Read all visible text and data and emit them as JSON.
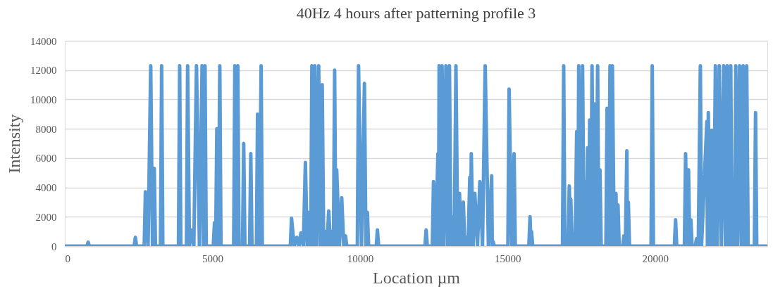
{
  "chart_data": {
    "type": "line",
    "title": "40Hz 4 hours after patterning profile 3",
    "xlabel": "Location µm",
    "ylabel": "Intensity",
    "xlim": [
      0,
      23800
    ],
    "xticks": [
      0,
      5000,
      10000,
      15000,
      20000
    ],
    "ylim": [
      0,
      14000
    ],
    "yticks": [
      0,
      2000,
      4000,
      6000,
      8000,
      10000,
      12000,
      14000
    ],
    "grid": "y",
    "legend": false,
    "marker": "none",
    "line_style": "solid",
    "series": [
      {
        "color": "#5b9bd5",
        "x": [
          0,
          750,
          790,
          830,
          2350,
          2390,
          2430,
          2690,
          2730,
          2820,
          2910,
          2970,
          3030,
          3070,
          3240,
          3280,
          3320,
          3850,
          3890,
          3930,
          4120,
          4160,
          4220,
          4290,
          4370,
          4460,
          4560,
          4650,
          4700,
          4750,
          4790,
          5030,
          5070,
          5110,
          5150,
          5200,
          5250,
          5290,
          5720,
          5760,
          5810,
          5860,
          5900,
          6020,
          6060,
          6100,
          6260,
          6300,
          6340,
          6490,
          6530,
          6590,
          6650,
          6690,
          7640,
          7680,
          7770,
          7860,
          7930,
          8000,
          8080,
          8150,
          8210,
          8280,
          8330,
          8370,
          8420,
          8470,
          8530,
          8600,
          8660,
          8720,
          8770,
          8820,
          8880,
          8940,
          9000,
          9060,
          9100,
          9140,
          9180,
          9210,
          9300,
          9380,
          9450,
          9510,
          9550,
          9910,
          9950,
          10050,
          10150,
          10200,
          10250,
          10290,
          10550,
          10590,
          10630,
          12200,
          12240,
          12280,
          12450,
          12490,
          12560,
          12640,
          12660,
          12680,
          12730,
          12780,
          12840,
          12910,
          12970,
          13030,
          13080,
          13130,
          13190,
          13250,
          13310,
          13370,
          13430,
          13500,
          13550,
          13600,
          13660,
          13720,
          13740,
          13770,
          13830,
          13890,
          13980,
          14060,
          14150,
          14240,
          14350,
          14460,
          14480,
          14510,
          14550,
          15010,
          15050,
          15140,
          15220,
          15260,
          15720,
          15760,
          15790,
          15810,
          15850,
          16860,
          16900,
          16940,
          17050,
          17090,
          17120,
          17140,
          17190,
          17240,
          17290,
          17340,
          17380,
          17410,
          17480,
          17540,
          17590,
          17640,
          17670,
          17710,
          17750,
          17780,
          17820,
          17860,
          17910,
          17960,
          18000,
          18050,
          18090,
          18130,
          18170,
          18330,
          18370,
          18420,
          18470,
          18510,
          18550,
          18610,
          18670,
          18710,
          18740,
          18780,
          18900,
          18940,
          18990,
          19040,
          19060,
          19090,
          19130,
          19860,
          19900,
          19940,
          20650,
          20690,
          20730,
          20990,
          21030,
          21080,
          21130,
          21170,
          21210,
          21250,
          21360,
          21400,
          21460,
          21530,
          21570,
          21750,
          21770,
          21800,
          21860,
          21920,
          21980,
          22040,
          22100,
          22170,
          22240,
          22320,
          22380,
          22440,
          22500,
          22560,
          22600,
          22640,
          22690,
          22730,
          22790,
          22860,
          22920,
          22980,
          23040,
          23100,
          23150,
          23360,
          23400,
          23440,
          23800
        ],
        "values": [
          0,
          0,
          270,
          0,
          0,
          600,
          0,
          0,
          3700,
          0,
          12300,
          0,
          5300,
          0,
          0,
          12300,
          0,
          0,
          12300,
          0,
          0,
          12300,
          0,
          1100,
          0,
          12300,
          0,
          12300,
          0,
          12300,
          0,
          0,
          1600,
          0,
          8000,
          0,
          12300,
          0,
          0,
          12300,
          0,
          12300,
          0,
          0,
          7000,
          0,
          0,
          6300,
          0,
          0,
          9000,
          0,
          12300,
          0,
          0,
          1900,
          0,
          600,
          0,
          900,
          0,
          5700,
          0,
          2300,
          0,
          12300,
          0,
          12300,
          0,
          12300,
          0,
          11000,
          0,
          1000,
          0,
          2400,
          0,
          1000,
          0,
          12000,
          0,
          5200,
          0,
          3300,
          0,
          700,
          0,
          0,
          12300,
          0,
          11100,
          0,
          2300,
          0,
          0,
          1100,
          0,
          0,
          1100,
          0,
          0,
          4400,
          0,
          6300,
          0,
          12300,
          0,
          12300,
          0,
          12300,
          0,
          12300,
          0,
          2000,
          0,
          12300,
          0,
          3600,
          0,
          3000,
          0,
          600,
          0,
          4700,
          0,
          6300,
          0,
          3600,
          0,
          4400,
          0,
          12300,
          0,
          4800,
          0,
          300,
          0,
          0,
          10700,
          0,
          6300,
          0,
          0,
          2000,
          0,
          1000,
          0,
          0,
          12300,
          0,
          0,
          4100,
          0,
          3200,
          0,
          300,
          0,
          7800,
          0,
          12300,
          0,
          12300,
          0,
          4400,
          0,
          6700,
          0,
          8600,
          0,
          12300,
          0,
          9700,
          0,
          12300,
          0,
          5200,
          0,
          0,
          9400,
          0,
          12300,
          0,
          12300,
          0,
          3600,
          0,
          2800,
          0,
          0,
          700,
          0,
          6500,
          0,
          3000,
          0,
          0,
          12300,
          0,
          0,
          1800,
          0,
          0,
          6300,
          0,
          5200,
          0,
          1800,
          0,
          0,
          500,
          0,
          12300,
          0,
          8500,
          0,
          9100,
          0,
          7900,
          0,
          12300,
          0,
          12300,
          0,
          12300,
          0,
          12300,
          0,
          12300,
          0,
          300,
          0,
          12300,
          0,
          12300,
          0,
          12300,
          0,
          12300,
          0,
          0,
          9100,
          0,
          0
        ]
      }
    ]
  }
}
